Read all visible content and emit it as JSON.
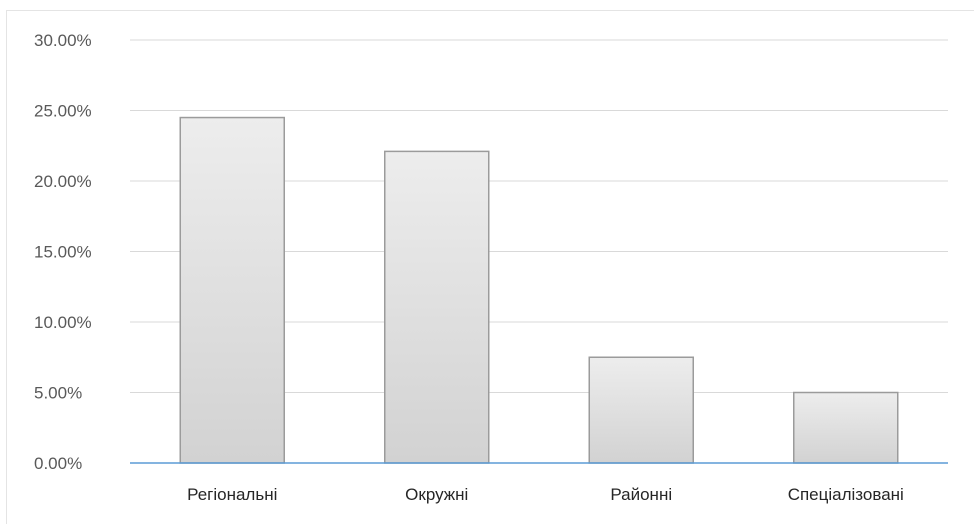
{
  "chart_data": {
    "type": "bar",
    "categories": [
      "Регіональні",
      "Окружні",
      "Районні",
      "Спеціалізовані"
    ],
    "values": [
      24.5,
      22.1,
      7.5,
      5.0
    ],
    "ylim": [
      0,
      30
    ],
    "y_ticks": [
      "0.00%",
      "5.00%",
      "10.00%",
      "15.00%",
      "20.00%",
      "25.00%",
      "30.00%"
    ],
    "grid": true,
    "colors": {
      "bar_fill_top": "#ededed",
      "bar_fill_bottom": "#d2d2d2",
      "bar_stroke": "#9b9b9b",
      "grid": "#d9d9d9",
      "axis": "#5b9bd5"
    }
  }
}
